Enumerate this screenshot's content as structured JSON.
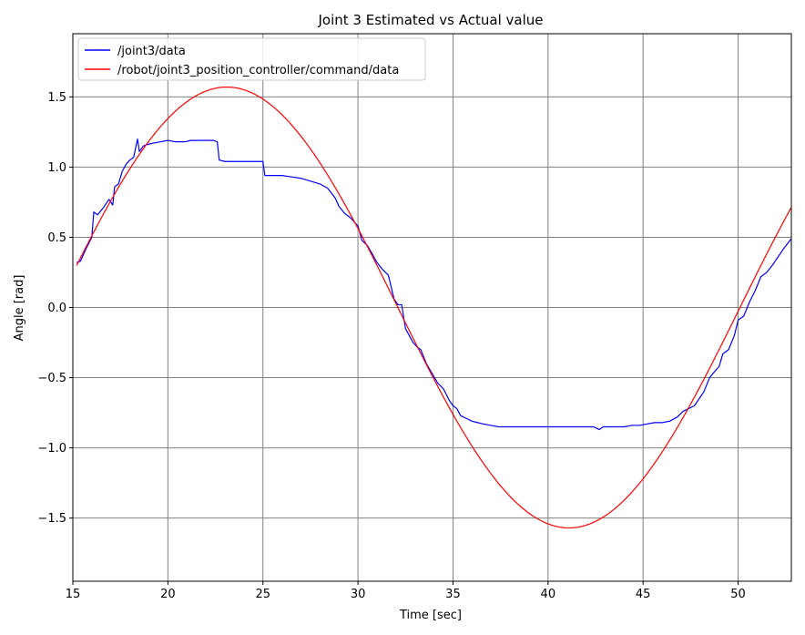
{
  "chart_data": {
    "type": "line",
    "title": "Joint 3 Estimated vs Actual value",
    "xlabel": "Time [sec]",
    "ylabel": "Angle [rad]",
    "xlim": [
      15.0,
      52.8
    ],
    "ylim": [
      -1.95,
      1.95
    ],
    "xticks": [
      15,
      20,
      25,
      30,
      35,
      40,
      45,
      50
    ],
    "yticks": [
      -1.5,
      -1.0,
      -0.5,
      0.0,
      0.5,
      1.0,
      1.5
    ],
    "xtick_labels": [
      "15",
      "20",
      "25",
      "30",
      "35",
      "40",
      "45",
      "50"
    ],
    "ytick_labels": [
      "−1.5",
      "−1.0",
      "−0.5",
      "0.0",
      "0.5",
      "1.0",
      "1.5"
    ],
    "grid": true,
    "legend_position": "upper-left",
    "series": [
      {
        "name": "/joint3/data",
        "color": "#0000ff",
        "x": [
          15.2,
          15.4,
          15.7,
          16.0,
          16.1,
          16.3,
          16.6,
          16.9,
          17.1,
          17.2,
          17.4,
          17.6,
          17.8,
          18.0,
          18.2,
          18.4,
          18.5,
          18.7,
          18.9,
          19.2,
          19.6,
          20.0,
          20.4,
          20.6,
          20.9,
          21.2,
          21.6,
          22.0,
          22.4,
          22.6,
          22.7,
          23.0,
          23.6,
          24.0,
          24.5,
          25.0,
          25.1,
          25.2,
          25.5,
          26.0,
          26.5,
          27.0,
          27.5,
          28.0,
          28.4,
          28.8,
          29.0,
          29.3,
          29.6,
          30.0,
          30.2,
          30.5,
          30.8,
          31.0,
          31.3,
          31.6,
          31.9,
          32.1,
          32.3,
          32.5,
          32.7,
          32.9,
          33.1,
          33.3,
          33.6,
          33.9,
          34.2,
          34.5,
          34.8,
          35.0,
          35.2,
          35.4,
          35.7,
          36.0,
          36.3,
          36.6,
          37.0,
          37.4,
          37.8,
          38.2,
          38.5,
          38.8,
          39.2,
          39.6,
          40.0,
          40.4,
          40.8,
          41.2,
          41.6,
          42.0,
          42.4,
          42.7,
          42.9,
          43.2,
          43.6,
          44.0,
          44.4,
          44.8,
          45.2,
          45.6,
          46.0,
          46.4,
          46.8,
          47.1,
          47.4,
          47.7,
          48.0,
          48.2,
          48.5,
          48.8,
          49.0,
          49.2,
          49.5,
          49.8,
          50.0,
          50.3,
          50.6,
          50.9,
          51.2,
          51.5,
          51.8,
          52.1,
          52.4,
          52.8
        ],
        "y": [
          0.32,
          0.33,
          0.42,
          0.5,
          0.68,
          0.66,
          0.71,
          0.77,
          0.73,
          0.86,
          0.88,
          0.97,
          1.02,
          1.05,
          1.07,
          1.2,
          1.11,
          1.15,
          1.16,
          1.17,
          1.18,
          1.19,
          1.18,
          1.18,
          1.18,
          1.19,
          1.19,
          1.19,
          1.19,
          1.18,
          1.05,
          1.04,
          1.04,
          1.04,
          1.04,
          1.04,
          0.94,
          0.94,
          0.94,
          0.94,
          0.93,
          0.92,
          0.9,
          0.88,
          0.85,
          0.78,
          0.72,
          0.67,
          0.64,
          0.58,
          0.48,
          0.44,
          0.37,
          0.32,
          0.27,
          0.23,
          0.06,
          0.02,
          0.02,
          -0.15,
          -0.2,
          -0.25,
          -0.28,
          -0.3,
          -0.4,
          -0.47,
          -0.54,
          -0.58,
          -0.66,
          -0.7,
          -0.72,
          -0.77,
          -0.79,
          -0.81,
          -0.82,
          -0.83,
          -0.84,
          -0.85,
          -0.85,
          -0.85,
          -0.85,
          -0.85,
          -0.85,
          -0.85,
          -0.85,
          -0.85,
          -0.85,
          -0.85,
          -0.85,
          -0.85,
          -0.85,
          -0.87,
          -0.85,
          -0.85,
          -0.85,
          -0.85,
          -0.84,
          -0.84,
          -0.83,
          -0.82,
          -0.82,
          -0.81,
          -0.78,
          -0.74,
          -0.72,
          -0.7,
          -0.64,
          -0.6,
          -0.5,
          -0.45,
          -0.42,
          -0.33,
          -0.3,
          -0.2,
          -0.09,
          -0.06,
          0.04,
          0.12,
          0.22,
          0.25,
          0.3,
          0.36,
          0.42,
          0.49
        ]
      },
      {
        "name": "/robot/joint3_position_controller/command/data",
        "color": "#ff0000",
        "function": {
          "kind": "sine",
          "amplitude": 1.57,
          "period": 36.0,
          "peak_time": 23.1,
          "x_start": 15.2,
          "x_end": 52.8
        }
      }
    ]
  }
}
